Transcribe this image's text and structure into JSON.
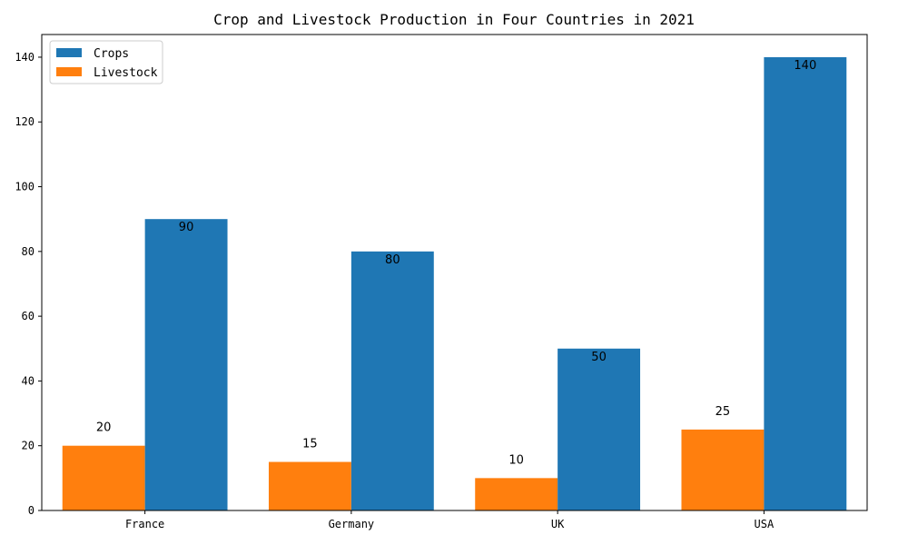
{
  "chart_data": {
    "type": "bar",
    "title": "Crop and Livestock Production in Four Countries in 2021",
    "xlabel": "",
    "ylabel": "",
    "categories": [
      "France",
      "Germany",
      "UK",
      "USA"
    ],
    "series": [
      {
        "name": "Livestock",
        "values": [
          20,
          15,
          10,
          25
        ],
        "color": "#ff7f0e"
      },
      {
        "name": "Crops",
        "values": [
          90,
          80,
          50,
          140
        ],
        "color": "#1f77b4"
      }
    ],
    "legend_order": [
      "Crops",
      "Livestock"
    ],
    "legend_position": "top-left",
    "ylim": [
      0,
      147
    ],
    "yticks": [
      0,
      20,
      40,
      60,
      80,
      100,
      120,
      140
    ],
    "grid": false
  }
}
